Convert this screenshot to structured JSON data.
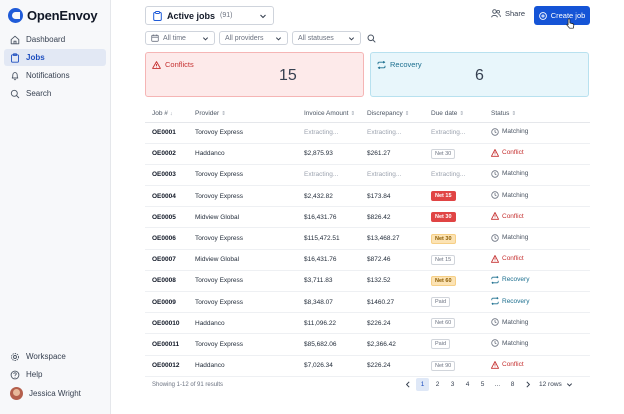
{
  "app": {
    "name": "OpenEnvoy"
  },
  "sidebar": {
    "items": [
      {
        "label": "Dashboard",
        "icon": "home-icon",
        "active": false
      },
      {
        "label": "Jobs",
        "icon": "clipboard-icon",
        "active": true
      },
      {
        "label": "Notifications",
        "icon": "bell-icon",
        "active": false
      },
      {
        "label": "Search",
        "icon": "search-icon",
        "active": false
      }
    ],
    "bottom": [
      {
        "label": "Workspace",
        "icon": "gear-icon"
      },
      {
        "label": "Help",
        "icon": "help-icon"
      }
    ],
    "user": {
      "name": "Jessica Wright"
    }
  },
  "header": {
    "view_label": "Active jobs",
    "view_count": "(91)",
    "share_label": "Share",
    "create_label": "Create job"
  },
  "filters": {
    "date": "All time",
    "providers": "All providers",
    "statuses": "All statuses"
  },
  "summary": {
    "conflicts": {
      "label": "Conflicts",
      "count": "15"
    },
    "recovery": {
      "label": "Recovery",
      "count": "6"
    }
  },
  "table": {
    "columns": [
      "Job #",
      "Provider",
      "Invoice Amount",
      "Discrepancy",
      "Due date",
      "Status"
    ],
    "rows": [
      {
        "job": "OE0001",
        "provider": "Torovoy Express",
        "amount": "Extracting...",
        "discrepancy": "Extracting...",
        "due": "Extracting...",
        "due_style": "text",
        "status": "Matching"
      },
      {
        "job": "OE0002",
        "provider": "Haddanco",
        "amount": "$2,875.93",
        "discrepancy": "$261.27",
        "due": "Net 30",
        "due_style": "plain",
        "status": "Conflict"
      },
      {
        "job": "OE0003",
        "provider": "Torovoy Express",
        "amount": "Extracting...",
        "discrepancy": "Extracting...",
        "due": "Extracting...",
        "due_style": "text",
        "status": "Matching"
      },
      {
        "job": "OE0004",
        "provider": "Torovoy Express",
        "amount": "$2,432.82",
        "discrepancy": "$173.84",
        "due": "Net 15",
        "due_style": "red",
        "status": "Matching"
      },
      {
        "job": "OE0005",
        "provider": "Midview Global",
        "amount": "$16,431.76",
        "discrepancy": "$826.42",
        "due": "Net 30",
        "due_style": "red",
        "status": "Conflict"
      },
      {
        "job": "OE0006",
        "provider": "Torovoy Express",
        "amount": "$115,472.51",
        "discrepancy": "$13,468.27",
        "due": "Net 30",
        "due_style": "amber",
        "status": "Matching"
      },
      {
        "job": "OE0007",
        "provider": "Midview Global",
        "amount": "$16,431.76",
        "discrepancy": "$872.46",
        "due": "Net 15",
        "due_style": "plain",
        "status": "Conflict"
      },
      {
        "job": "OE0008",
        "provider": "Torovoy Express",
        "amount": "$3,711.83",
        "discrepancy": "$132.52",
        "due": "Net 60",
        "due_style": "amber",
        "status": "Recovery"
      },
      {
        "job": "OE0009",
        "provider": "Torovoy Express",
        "amount": "$8,348.07",
        "discrepancy": "$1460.27",
        "due": "Paid",
        "due_style": "plain",
        "status": "Recovery"
      },
      {
        "job": "OE00010",
        "provider": "Haddanco",
        "amount": "$11,096.22",
        "discrepancy": "$226.24",
        "due": "Net 60",
        "due_style": "plain",
        "status": "Matching"
      },
      {
        "job": "OE00011",
        "provider": "Torovoy Express",
        "amount": "$85,682.06",
        "discrepancy": "$2,366.42",
        "due": "Paid",
        "due_style": "plain",
        "status": "Matching"
      },
      {
        "job": "OE00012",
        "provider": "Haddanco",
        "amount": "$7,026.34",
        "discrepancy": "$226.24",
        "due": "Net 90",
        "due_style": "plain",
        "status": "Conflict"
      }
    ]
  },
  "footer": {
    "showing": "Showing 1-12 of 91 results",
    "pages": [
      "1",
      "2",
      "3",
      "4",
      "5",
      "...",
      "8"
    ],
    "current_page": "1",
    "rows_label": "12 rows"
  },
  "colors": {
    "accent": "#1554d6",
    "conflict": "#c53030",
    "recovery": "#1c6f8f",
    "sidebar_bg": "#f7f8fa"
  }
}
